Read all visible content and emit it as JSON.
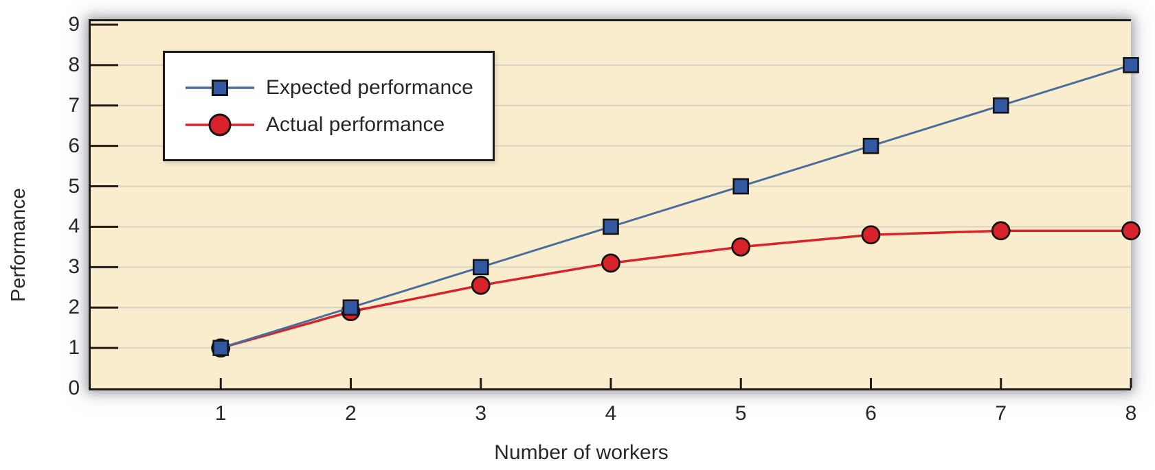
{
  "chart_data": {
    "type": "line",
    "x": [
      1,
      2,
      3,
      4,
      5,
      6,
      7,
      8
    ],
    "series": [
      {
        "name": "Expected performance",
        "marker": "square",
        "line_color": "#4a6d9d",
        "marker_fill": "#3158a1",
        "values": [
          1,
          2,
          3,
          4,
          5,
          6,
          7,
          8
        ]
      },
      {
        "name": "Actual performance",
        "marker": "circle",
        "line_color": "#d9232b",
        "marker_fill": "#d9232b",
        "values": [
          1,
          1.9,
          2.55,
          3.1,
          3.5,
          3.8,
          3.9,
          3.9
        ]
      }
    ],
    "xlabel": "Number of workers",
    "ylabel": "Performance",
    "x_ticks": [
      "1",
      "2",
      "3",
      "4",
      "5",
      "6",
      "7",
      "8"
    ],
    "y_ticks": [
      "0",
      "1",
      "2",
      "3",
      "4",
      "5",
      "6",
      "7",
      "8",
      "9"
    ],
    "grid_y": [
      1,
      2,
      3,
      4,
      5,
      6,
      7,
      8
    ],
    "xlim": [
      0,
      8
    ],
    "ylim": [
      0,
      9
    ],
    "grid": "horizontal",
    "legend_position": "top-left",
    "colors": {
      "figure_background": "#ffffff",
      "plot_background": "#faedcd",
      "gridline": "#d9d4c4",
      "axis": "#1e1b17",
      "text": "#2b2626",
      "marker_stroke": "#141414"
    }
  }
}
